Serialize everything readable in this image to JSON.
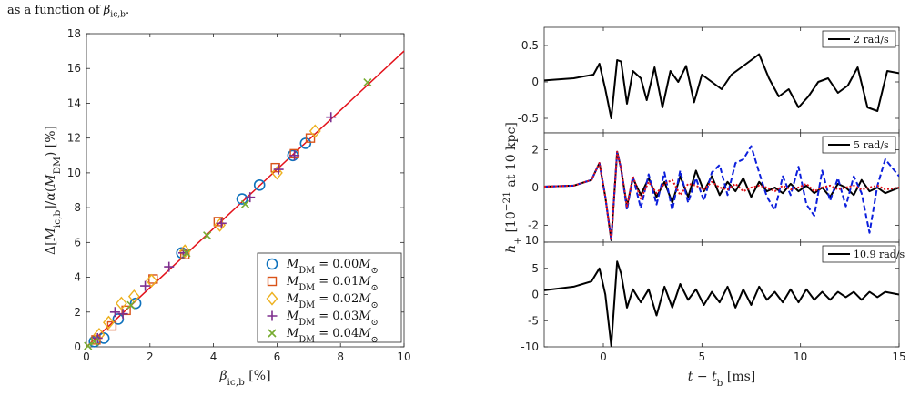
{
  "caption": "as a function of β_ic,b.",
  "chart_data": [
    {
      "type": "scatter",
      "xlabel": "β_ic,b [%]",
      "ylabel": "Δ[M_ic,b]/α(M_DM) [%]",
      "xlim": [
        0,
        10
      ],
      "ylim": [
        0,
        18
      ],
      "xticks": [
        0,
        2,
        4,
        6,
        8,
        10
      ],
      "yticks": [
        0,
        2,
        4,
        6,
        8,
        10,
        12,
        14,
        16,
        18
      ],
      "legend_position": "bottom-right",
      "fit_line": {
        "color": "#e3121b",
        "slope": 1.7,
        "intercept": 0,
        "x": [
          0,
          10
        ]
      },
      "series": [
        {
          "name": "M_DM = 0.00M_⊙",
          "marker": "circle",
          "color": "#0e72bd",
          "x": [
            0.25,
            0.55,
            1.0,
            1.55,
            3.0,
            4.9,
            5.45,
            6.5,
            6.9
          ],
          "y": [
            0.3,
            0.5,
            1.6,
            2.5,
            5.4,
            8.5,
            9.3,
            11.0,
            11.7
          ]
        },
        {
          "name": "M_DM = 0.01M_⊙",
          "marker": "square",
          "color": "#d95319",
          "x": [
            0.3,
            0.8,
            1.25,
            2.1,
            3.1,
            4.15,
            5.95,
            6.55,
            7.05
          ],
          "y": [
            0.4,
            1.2,
            2.1,
            3.9,
            5.3,
            7.2,
            10.3,
            11.1,
            12.0
          ]
        },
        {
          "name": "M_DM = 0.02M_⊙",
          "marker": "diamond",
          "color": "#edb120",
          "x": [
            0.4,
            0.7,
            1.1,
            1.5,
            2.05,
            3.1,
            4.2,
            6.0,
            7.2
          ],
          "y": [
            0.7,
            1.4,
            2.5,
            2.9,
            3.8,
            5.5,
            7.0,
            10.0,
            12.4
          ]
        },
        {
          "name": "M_DM = 0.03M_⊙",
          "marker": "plus",
          "color": "#7e2f8e",
          "x": [
            0.35,
            0.9,
            1.15,
            1.85,
            2.6,
            3.05,
            4.25,
            5.15,
            6.05,
            6.55,
            7.7
          ],
          "y": [
            0.5,
            2.0,
            1.9,
            3.5,
            4.6,
            5.4,
            7.1,
            8.6,
            10.2,
            11.0,
            13.2
          ]
        },
        {
          "name": "M_DM = 0.04M_⊙",
          "marker": "x",
          "color": "#77ac30",
          "x": [
            0.05,
            0.25,
            1.4,
            3.15,
            3.8,
            5.0,
            8.85
          ],
          "y": [
            0.05,
            0.3,
            2.4,
            5.4,
            6.4,
            8.2,
            15.2
          ]
        }
      ]
    },
    {
      "type": "line",
      "xlabel": "t − t_b [ms]",
      "ylabel": "h_+ [10^−21 at 10 kpc]",
      "xlim": [
        -3,
        15
      ],
      "xticks": [
        0,
        5,
        10,
        15
      ],
      "panels": [
        {
          "legend": "2 rad/s",
          "ylim": [
            -0.7,
            0.75
          ],
          "yticks": [
            0.5,
            0,
            -0.5
          ],
          "yticklabels": [
            "0.5",
            "0",
            "-0.5"
          ],
          "series": [
            {
              "color": "#000000",
              "style": "solid",
              "x": [
                -3,
                -1.5,
                -0.5,
                -0.2,
                0.1,
                0.4,
                0.7,
                0.9,
                1.2,
                1.5,
                1.9,
                2.2,
                2.6,
                3.0,
                3.4,
                3.8,
                4.2,
                4.6,
                5.0,
                5.5,
                6.0,
                6.5,
                7.0,
                7.5,
                7.9,
                8.4,
                8.9,
                9.4,
                9.9,
                10.4,
                10.9,
                11.4,
                11.9,
                12.4,
                12.9,
                13.4,
                13.9,
                14.4,
                15
              ],
              "y": [
                0.02,
                0.05,
                0.1,
                0.25,
                -0.1,
                -0.5,
                0.3,
                0.28,
                -0.3,
                0.15,
                0.05,
                -0.25,
                0.2,
                -0.35,
                0.15,
                0.0,
                0.22,
                -0.28,
                0.1,
                0.0,
                -0.1,
                0.1,
                0.2,
                0.3,
                0.38,
                0.05,
                -0.2,
                -0.1,
                -0.35,
                -0.2,
                0.0,
                0.05,
                -0.15,
                -0.05,
                0.2,
                -0.35,
                -0.4,
                0.15,
                0.12
              ]
            }
          ]
        },
        {
          "legend": "5 rad/s",
          "ylim": [
            -2.9,
            2.9
          ],
          "yticks": [
            2,
            0,
            -2
          ],
          "yticklabels": [
            "2",
            "0",
            "-2"
          ],
          "series": [
            {
              "color": "#000000",
              "style": "solid",
              "x": [
                -3,
                -1.5,
                -0.6,
                -0.2,
                0.1,
                0.4,
                0.7,
                0.9,
                1.2,
                1.5,
                1.9,
                2.3,
                2.7,
                3.1,
                3.5,
                3.9,
                4.3,
                4.7,
                5.1,
                5.5,
                5.9,
                6.3,
                6.7,
                7.1,
                7.5,
                7.9,
                8.3,
                8.7,
                9.1,
                9.5,
                9.9,
                10.3,
                10.7,
                11.1,
                11.5,
                11.9,
                12.3,
                12.7,
                13.1,
                13.5,
                13.9,
                14.3,
                15
              ],
              "y": [
                0.05,
                0.1,
                0.4,
                1.3,
                -0.5,
                -2.8,
                1.9,
                1.0,
                -1.0,
                0.5,
                -0.4,
                0.5,
                -0.5,
                0.3,
                -0.8,
                0.6,
                -0.5,
                0.9,
                -0.2,
                0.6,
                -0.4,
                0.3,
                -0.2,
                0.5,
                -0.5,
                0.3,
                -0.2,
                0.0,
                -0.3,
                0.2,
                -0.2,
                0.1,
                -0.3,
                0.0,
                -0.5,
                0.2,
                0.0,
                -0.4,
                0.4,
                -0.2,
                0.0,
                -0.3,
                0.0
              ]
            },
            {
              "color": "#0b1edc",
              "style": "dashed",
              "x": [
                -3,
                -1.5,
                -0.6,
                -0.2,
                0.1,
                0.4,
                0.7,
                0.9,
                1.2,
                1.5,
                1.9,
                2.3,
                2.7,
                3.1,
                3.5,
                3.9,
                4.3,
                4.7,
                5.1,
                5.5,
                5.9,
                6.3,
                6.7,
                7.1,
                7.5,
                7.9,
                8.3,
                8.7,
                9.1,
                9.5,
                9.9,
                10.3,
                10.7,
                11.1,
                11.5,
                11.9,
                12.3,
                12.7,
                13.1,
                13.5,
                13.9,
                14.3,
                15
              ],
              "y": [
                0.05,
                0.1,
                0.4,
                1.3,
                -0.5,
                -2.8,
                1.9,
                1.0,
                -1.2,
                0.6,
                -1.1,
                0.7,
                -0.9,
                0.8,
                -1.2,
                0.9,
                -0.8,
                0.5,
                -0.7,
                0.8,
                1.2,
                -0.4,
                1.3,
                1.5,
                2.2,
                0.8,
                -0.5,
                -1.2,
                0.6,
                -0.4,
                1.1,
                -0.9,
                -1.5,
                0.9,
                -0.7,
                0.5,
                -1.0,
                0.6,
                -0.3,
                -2.4,
                0.1,
                1.5,
                0.6
              ]
            },
            {
              "color": "#e3121b",
              "style": "dotted",
              "x": [
                -3,
                -1.5,
                -0.6,
                -0.2,
                0.1,
                0.4,
                0.7,
                0.9,
                1.2,
                1.5,
                1.9,
                2.3,
                2.7,
                3.1,
                3.5,
                3.9,
                4.3,
                4.7,
                5.1,
                5.5,
                5.9,
                6.3,
                6.7,
                7.1,
                7.5,
                7.9,
                8.3,
                8.7,
                9.1,
                9.5,
                9.9,
                10.3,
                10.7,
                11.1,
                11.5,
                11.9,
                12.3,
                12.7,
                13.1,
                13.5,
                13.9,
                14.3,
                15
              ],
              "y": [
                0.05,
                0.1,
                0.4,
                1.3,
                -0.5,
                -2.8,
                1.9,
                1.0,
                -1.0,
                0.6,
                -0.6,
                0.3,
                -0.3,
                0.2,
                0.4,
                -0.4,
                0.2,
                0.1,
                -0.1,
                0.3,
                0.0,
                -0.1,
                0.2,
                -0.2,
                0.0,
                0.1,
                0.0,
                -0.2,
                0.1,
                -0.1,
                0.0,
                0.2,
                -0.2,
                0.0,
                0.1,
                -0.1,
                0.0,
                0.1,
                -0.1,
                0.0,
                0.1,
                -0.1,
                0.0
              ]
            }
          ]
        },
        {
          "legend": "10.9 rad/s",
          "ylim": [
            -10,
            10
          ],
          "yticks": [
            10,
            5,
            0,
            -5,
            -10
          ],
          "yticklabels": [
            "10",
            "5",
            "0",
            "-5",
            "-10"
          ],
          "series": [
            {
              "color": "#000000",
              "style": "solid",
              "x": [
                -3,
                -1.5,
                -0.6,
                -0.2,
                0.1,
                0.4,
                0.7,
                0.9,
                1.2,
                1.5,
                1.9,
                2.3,
                2.7,
                3.1,
                3.5,
                3.9,
                4.3,
                4.7,
                5.1,
                5.5,
                5.9,
                6.3,
                6.7,
                7.1,
                7.5,
                7.9,
                8.3,
                8.7,
                9.1,
                9.5,
                9.9,
                10.3,
                10.7,
                11.1,
                11.5,
                11.9,
                12.3,
                12.7,
                13.1,
                13.5,
                13.9,
                14.3,
                15
              ],
              "y": [
                0.8,
                1.5,
                2.5,
                5.0,
                0.0,
                -9.8,
                6.3,
                4.0,
                -2.5,
                1.0,
                -1.5,
                1.0,
                -4.0,
                1.5,
                -2.5,
                2.0,
                -1.0,
                1.0,
                -2.0,
                0.5,
                -1.5,
                1.5,
                -2.5,
                1.0,
                -2.0,
                1.5,
                -1.0,
                0.5,
                -1.5,
                1.0,
                -1.5,
                1.0,
                -1.0,
                0.5,
                -1.0,
                0.5,
                -0.5,
                0.5,
                -1.0,
                0.5,
                -0.5,
                0.5,
                0.0
              ]
            }
          ]
        }
      ]
    }
  ]
}
